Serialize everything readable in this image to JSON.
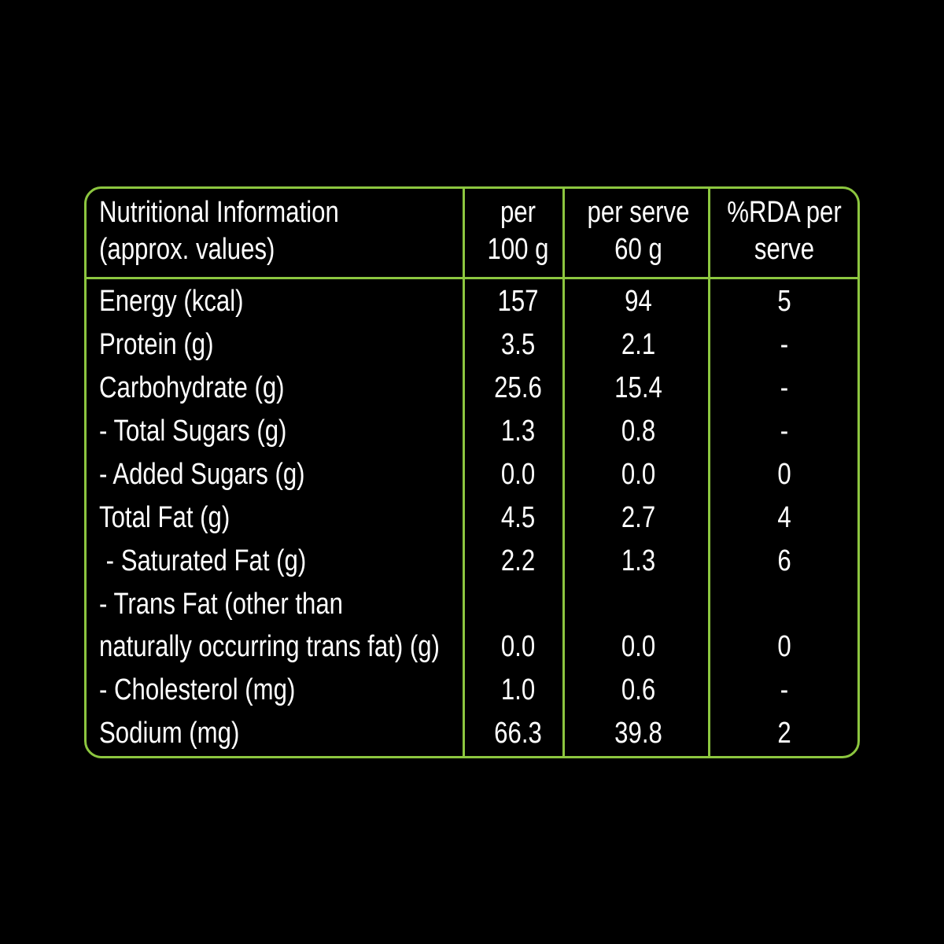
{
  "colors": {
    "background": "#000000",
    "border": "#8cc63f",
    "text": "#ffffff"
  },
  "header": {
    "col1_line1": "Nutritional Information",
    "col1_line2": " (approx. values)",
    "col2_line1": "per",
    "col2_line2": "100 g",
    "col3_line1": "per serve",
    "col3_line2": "60 g",
    "col4_line1": "%RDA per",
    "col4_line2": "serve"
  },
  "rows": [
    {
      "label": "Energy (kcal)",
      "per100": "157",
      "perServe": "94",
      "rda": "5"
    },
    {
      "label": "Protein (g)",
      "per100": "3.5",
      "perServe": "2.1",
      "rda": "-"
    },
    {
      "label": "Carbohydrate (g)",
      "per100": "25.6",
      "perServe": "15.4",
      "rda": "-"
    },
    {
      "label": "- Total Sugars (g)",
      "per100": "1.3",
      "perServe": "0.8",
      "rda": "-"
    },
    {
      "label": "- Added Sugars (g)",
      "per100": "0.0",
      "perServe": "0.0",
      "rda": "0"
    },
    {
      "label": "Total Fat (g)",
      "per100": "4.5",
      "perServe": "2.7",
      "rda": "4"
    },
    {
      "label": " - Saturated Fat (g)",
      "per100": "2.2",
      "perServe": "1.3",
      "rda": "6"
    },
    {
      "label": "- Trans Fat (other than",
      "per100": "",
      "perServe": "",
      "rda": ""
    },
    {
      "label": "naturally occurring trans fat) (g)",
      "per100": "0.0",
      "perServe": "0.0",
      "rda": "0"
    },
    {
      "label": "- Cholesterol (mg)",
      "per100": "1.0",
      "perServe": "0.6",
      "rda": "-"
    },
    {
      "label": "Sodium (mg)",
      "per100": "66.3",
      "perServe": "39.8",
      "rda": "2"
    }
  ]
}
